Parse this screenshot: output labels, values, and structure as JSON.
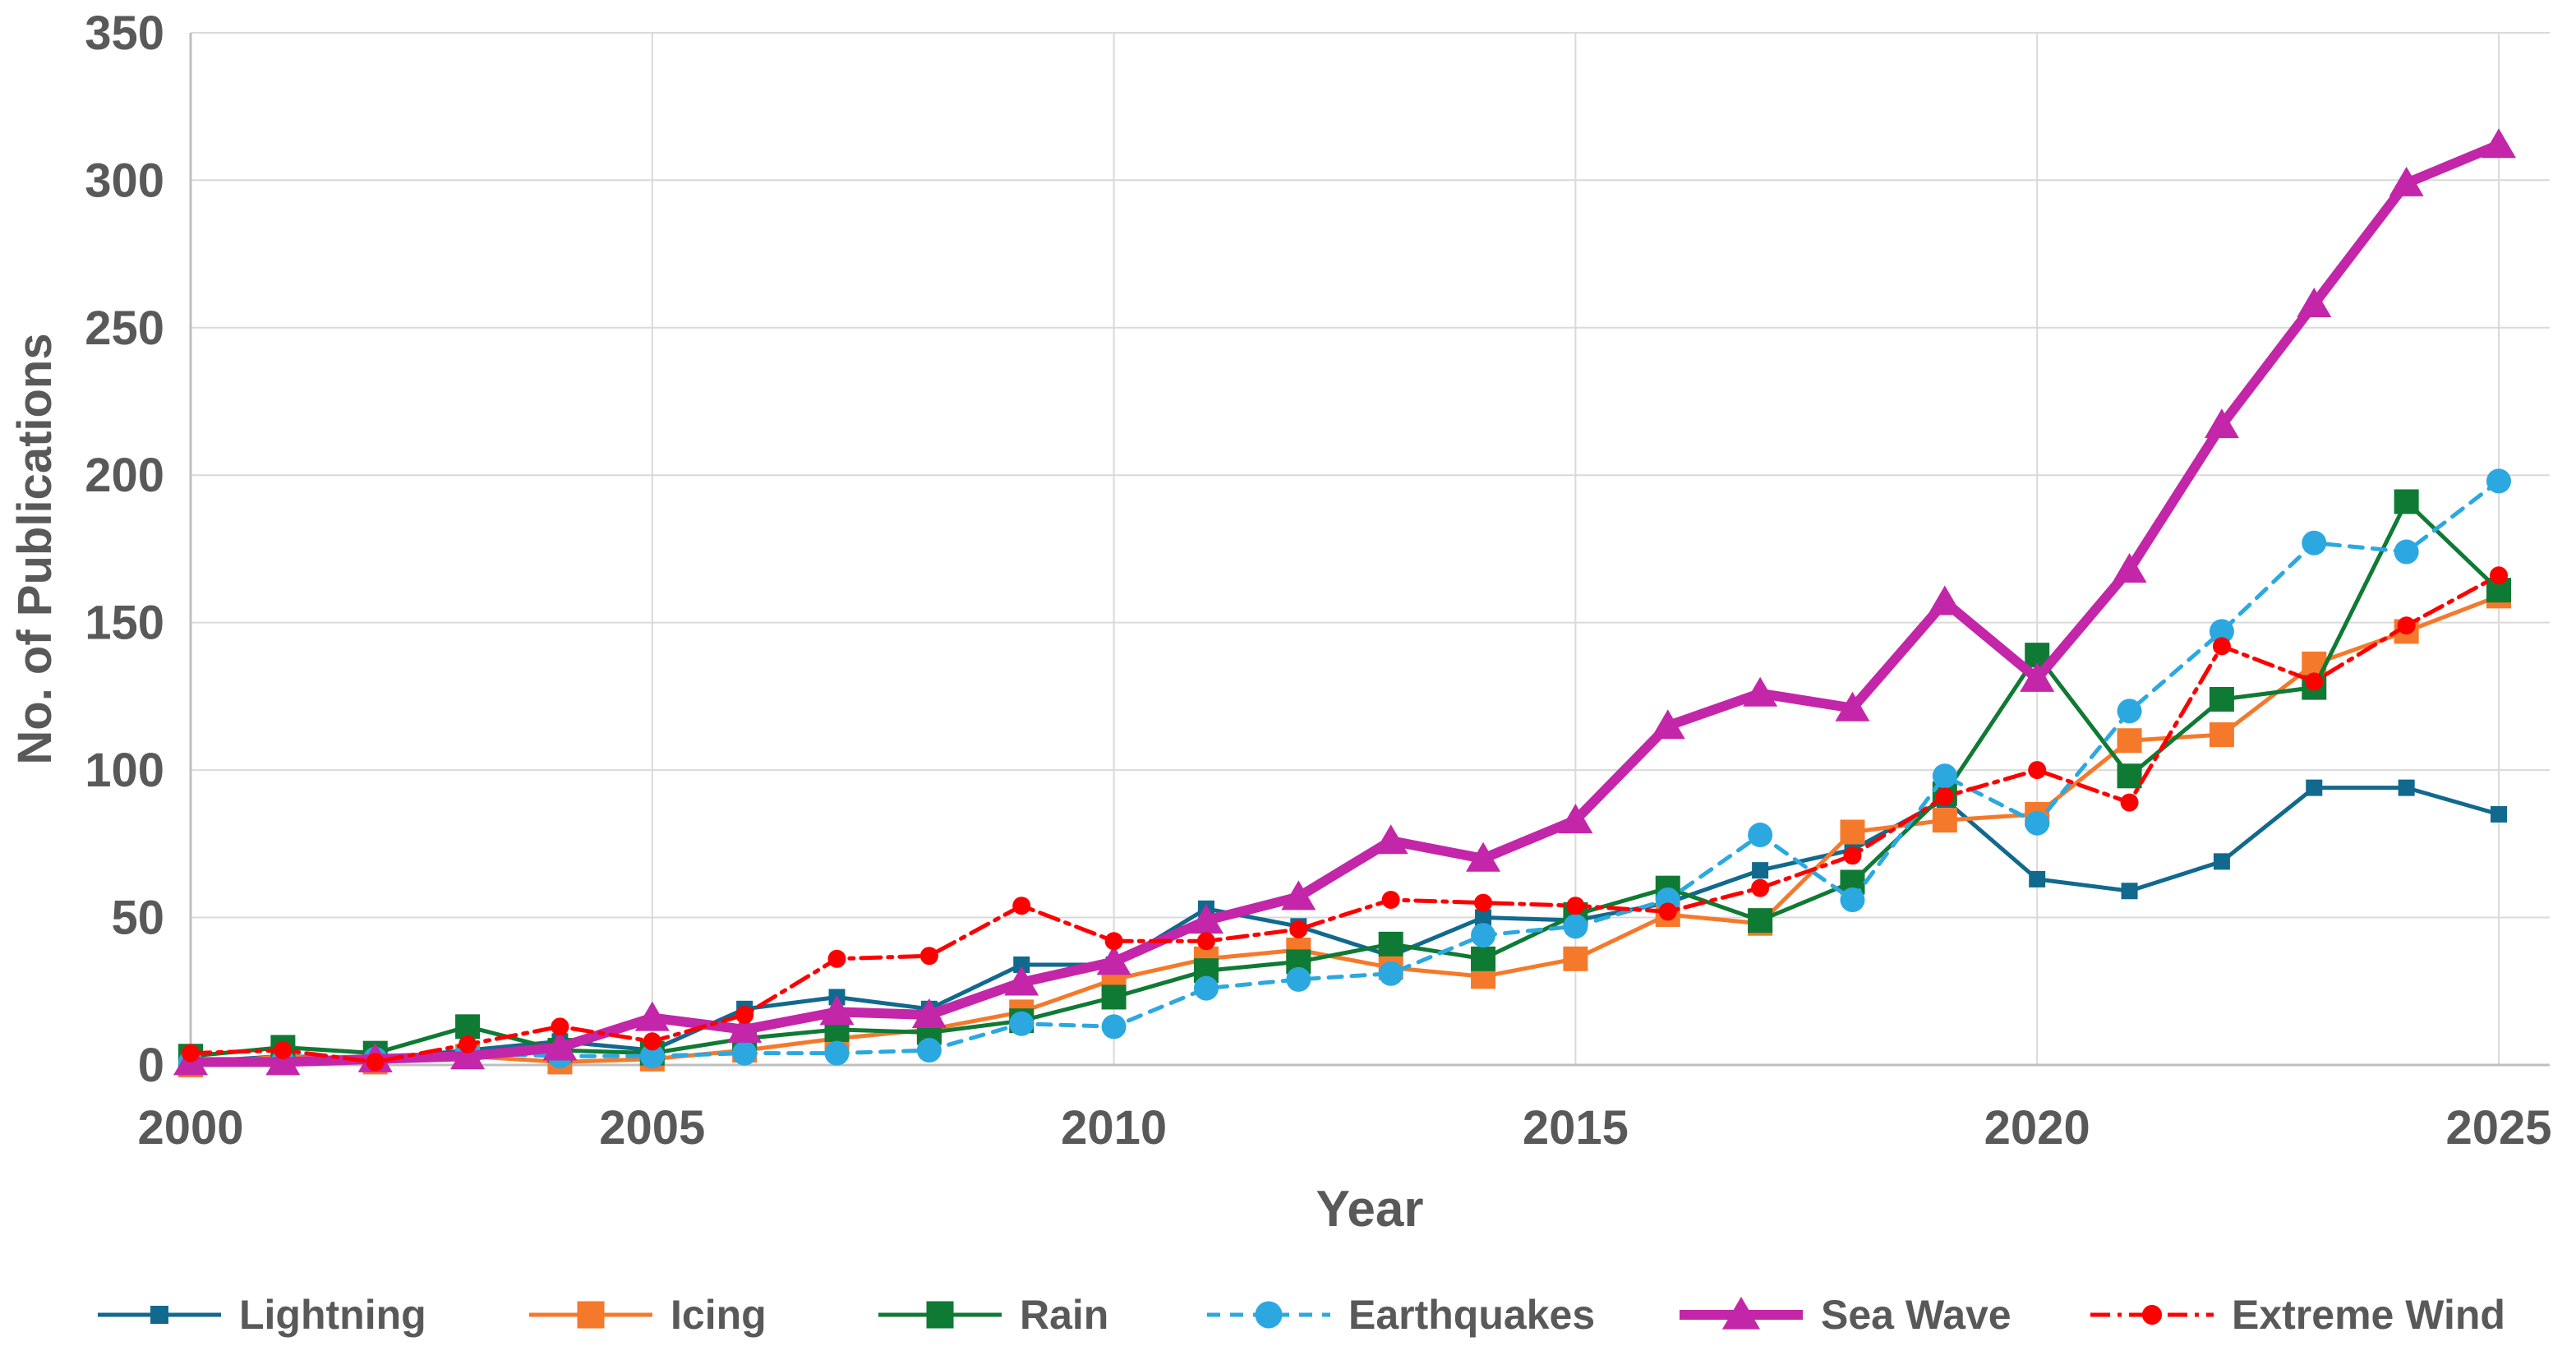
{
  "chart_data": {
    "type": "line",
    "title": "",
    "xlabel": "Year",
    "ylabel": "No. of Publications",
    "x": [
      2000,
      2001,
      2002,
      2003,
      2004,
      2005,
      2006,
      2007,
      2008,
      2009,
      2010,
      2011,
      2012,
      2013,
      2014,
      2015,
      2016,
      2017,
      2018,
      2019,
      2020,
      2021,
      2022,
      2023,
      2024,
      2025
    ],
    "x_ticks": [
      2000,
      2005,
      2010,
      2015,
      2020,
      2025
    ],
    "ylim": [
      0,
      350
    ],
    "y_tick_step": 50,
    "grid": true,
    "legend_position": "bottom",
    "series": [
      {
        "name": "Lightning",
        "color": "#11698E",
        "marker": "square-small",
        "line_style": "solid",
        "values": [
          1,
          3,
          2,
          5,
          8,
          5,
          19,
          23,
          19,
          34,
          34,
          53,
          47,
          37,
          50,
          49,
          55,
          66,
          73,
          90,
          63,
          59,
          69,
          94,
          94,
          85
        ]
      },
      {
        "name": "Icing",
        "color": "#F5792B",
        "marker": "square",
        "line_style": "solid",
        "values": [
          0,
          3,
          1,
          3,
          1,
          2,
          5,
          9,
          12,
          18,
          29,
          36,
          39,
          33,
          30,
          36,
          51,
          48,
          79,
          83,
          85,
          110,
          112,
          136,
          147,
          159
        ]
      },
      {
        "name": "Rain",
        "color": "#0F7A34",
        "marker": "square",
        "line_style": "solid",
        "values": [
          3,
          6,
          4,
          13,
          5,
          4,
          9,
          12,
          11,
          15,
          23,
          32,
          35,
          41,
          36,
          51,
          60,
          49,
          62,
          92,
          139,
          98,
          124,
          128,
          191,
          161
        ]
      },
      {
        "name": "Earthquakes",
        "color": "#2CA8E0",
        "marker": "circle",
        "line_style": "dashed",
        "values": [
          1,
          1,
          2,
          4,
          3,
          3,
          4,
          4,
          5,
          14,
          13,
          26,
          29,
          31,
          44,
          47,
          56,
          78,
          56,
          98,
          82,
          120,
          147,
          177,
          174,
          198
        ]
      },
      {
        "name": "Sea Wave",
        "color": "#C326A8",
        "marker": "triangle",
        "line_style": "solid-thick",
        "values": [
          1,
          1,
          2,
          3,
          6,
          16,
          12,
          18,
          17,
          28,
          35,
          49,
          57,
          76,
          70,
          83,
          115,
          126,
          121,
          157,
          131,
          168,
          217,
          258,
          299,
          312
        ]
      },
      {
        "name": "Extreme Wind",
        "color": "#FF0000",
        "marker": "dot",
        "line_style": "dash-dot",
        "values": [
          4,
          5,
          1,
          7,
          13,
          8,
          17,
          36,
          37,
          54,
          42,
          42,
          46,
          56,
          55,
          54,
          52,
          60,
          71,
          91,
          100,
          89,
          142,
          130,
          149,
          166
        ]
      }
    ]
  },
  "colors": {
    "background": "#FFFFFF",
    "text": "#595959",
    "grid": "#D9D9D9",
    "axis": "#BFBFBF"
  }
}
